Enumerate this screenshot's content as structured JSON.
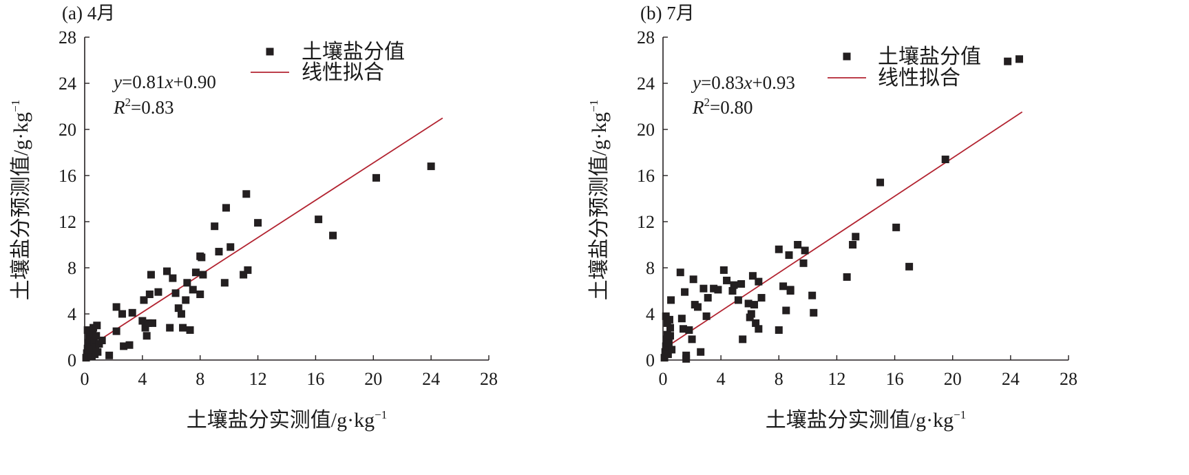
{
  "chart_data": [
    {
      "type": "scatter",
      "panel_label": "(a) 4月",
      "xlabel": "土壤盐分实测值/g·kg",
      "ylabel": "土壤盐分预测值/g·kg",
      "unit_exponent": "−1",
      "xlim": [
        0,
        28
      ],
      "ylim": [
        0,
        28
      ],
      "xticks": [
        0,
        4,
        8,
        12,
        16,
        20,
        24,
        28
      ],
      "yticks": [
        0,
        4,
        8,
        12,
        16,
        20,
        24,
        28
      ],
      "legend": {
        "points": "土壤盐分值",
        "fit": "线性拟合",
        "position": "top-center"
      },
      "equation": {
        "y": "y",
        "mid": "=0.81",
        "x": "x",
        "rest": "+0.90"
      },
      "r2": {
        "r": "R",
        "sup": "2",
        "rest": "=0.83"
      },
      "fit": {
        "slope": 0.81,
        "intercept": 0.9,
        "x_range": [
          0,
          24.8
        ]
      },
      "colors": {
        "points": "#231f20",
        "fit": "#b22330"
      },
      "points": [
        [
          0.1,
          0.2
        ],
        [
          0.15,
          0.6
        ],
        [
          0.2,
          1.0
        ],
        [
          0.25,
          1.5
        ],
        [
          0.3,
          2.0
        ],
        [
          0.2,
          2.6
        ],
        [
          0.35,
          0.4
        ],
        [
          0.4,
          1.2
        ],
        [
          0.45,
          1.8
        ],
        [
          0.5,
          0.3
        ],
        [
          0.55,
          2.3
        ],
        [
          0.6,
          0.9
        ],
        [
          0.65,
          1.6
        ],
        [
          0.7,
          0.5
        ],
        [
          0.75,
          1.1
        ],
        [
          0.8,
          2.1
        ],
        [
          0.85,
          3.0
        ],
        [
          0.9,
          0.7
        ],
        [
          1.0,
          1.4
        ],
        [
          0.6,
          2.8
        ],
        [
          0.3,
          0.9
        ],
        [
          1.2,
          1.7
        ],
        [
          1.7,
          0.4
        ],
        [
          2.2,
          2.5
        ],
        [
          2.2,
          4.6
        ],
        [
          2.6,
          4.0
        ],
        [
          2.7,
          1.2
        ],
        [
          3.1,
          1.3
        ],
        [
          3.3,
          4.1
        ],
        [
          4.0,
          3.4
        ],
        [
          4.1,
          5.2
        ],
        [
          4.2,
          2.8
        ],
        [
          4.3,
          2.1
        ],
        [
          4.4,
          3.2
        ],
        [
          4.5,
          5.7
        ],
        [
          4.6,
          7.4
        ],
        [
          4.7,
          3.2
        ],
        [
          5.1,
          5.9
        ],
        [
          5.7,
          7.7
        ],
        [
          5.9,
          2.8
        ],
        [
          6.1,
          7.1
        ],
        [
          6.3,
          5.8
        ],
        [
          6.5,
          4.5
        ],
        [
          6.7,
          4.0
        ],
        [
          6.8,
          2.8
        ],
        [
          7.0,
          5.2
        ],
        [
          7.1,
          6.7
        ],
        [
          7.3,
          2.6
        ],
        [
          7.5,
          6.1
        ],
        [
          7.7,
          7.6
        ],
        [
          8.0,
          9.0
        ],
        [
          8.0,
          5.7
        ],
        [
          8.2,
          7.4
        ],
        [
          8.1,
          8.9
        ],
        [
          9.0,
          11.6
        ],
        [
          9.3,
          9.4
        ],
        [
          9.7,
          6.7
        ],
        [
          9.8,
          13.2
        ],
        [
          10.1,
          9.8
        ],
        [
          11.0,
          7.4
        ],
        [
          11.2,
          14.4
        ],
        [
          11.3,
          7.8
        ],
        [
          12.0,
          11.9
        ],
        [
          16.2,
          12.2
        ],
        [
          17.2,
          10.8
        ],
        [
          20.2,
          15.8
        ],
        [
          24.0,
          16.8
        ]
      ]
    },
    {
      "type": "scatter",
      "panel_label": "(b) 7月",
      "xlabel": "土壤盐分实测值/g·kg",
      "ylabel": "土壤盐分预测值/g·kg",
      "unit_exponent": "−1",
      "xlim": [
        0,
        28
      ],
      "ylim": [
        0,
        28
      ],
      "xticks": [
        0,
        4,
        8,
        12,
        16,
        20,
        24,
        28
      ],
      "yticks": [
        0,
        4,
        8,
        12,
        16,
        20,
        24,
        28
      ],
      "legend": {
        "points": "土壤盐分值",
        "fit": "线性拟合",
        "position": "top-center"
      },
      "equation": {
        "y": "y",
        "mid": "=0.83",
        "x": "x",
        "rest": "+0.93"
      },
      "r2": {
        "r": "R",
        "sup": "2",
        "rest": "=0.80"
      },
      "fit": {
        "slope": 0.83,
        "intercept": 0.93,
        "x_range": [
          0,
          24.8
        ]
      },
      "colors": {
        "points": "#231f20",
        "fit": "#b22330"
      },
      "points": [
        [
          0.1,
          0.2
        ],
        [
          0.15,
          0.7
        ],
        [
          0.2,
          1.2
        ],
        [
          0.25,
          1.8
        ],
        [
          0.3,
          2.2
        ],
        [
          0.2,
          3.8
        ],
        [
          0.35,
          0.5
        ],
        [
          0.4,
          1.5
        ],
        [
          0.45,
          3.5
        ],
        [
          0.5,
          2.8
        ],
        [
          0.55,
          5.2
        ],
        [
          0.6,
          0.9
        ],
        [
          0.3,
          3.2
        ],
        [
          0.5,
          2.1
        ],
        [
          1.2,
          7.6
        ],
        [
          1.3,
          3.6
        ],
        [
          1.4,
          2.7
        ],
        [
          1.5,
          5.9
        ],
        [
          1.6,
          0.4
        ],
        [
          1.6,
          0.1
        ],
        [
          1.8,
          2.6
        ],
        [
          2.0,
          1.8
        ],
        [
          2.1,
          7.0
        ],
        [
          2.2,
          4.8
        ],
        [
          2.4,
          4.6
        ],
        [
          2.6,
          0.7
        ],
        [
          2.8,
          6.2
        ],
        [
          3.0,
          3.8
        ],
        [
          3.1,
          5.4
        ],
        [
          3.5,
          6.2
        ],
        [
          3.8,
          6.1
        ],
        [
          4.2,
          7.8
        ],
        [
          4.4,
          6.9
        ],
        [
          4.8,
          6.0
        ],
        [
          4.9,
          6.5
        ],
        [
          5.2,
          5.2
        ],
        [
          5.4,
          6.6
        ],
        [
          5.5,
          1.8
        ],
        [
          5.9,
          4.9
        ],
        [
          6.0,
          3.7
        ],
        [
          6.1,
          4.0
        ],
        [
          6.2,
          7.3
        ],
        [
          6.3,
          4.8
        ],
        [
          6.4,
          3.2
        ],
        [
          6.6,
          6.8
        ],
        [
          6.6,
          2.7
        ],
        [
          6.8,
          5.4
        ],
        [
          8.0,
          9.6
        ],
        [
          8.0,
          2.6
        ],
        [
          8.3,
          6.4
        ],
        [
          8.5,
          4.3
        ],
        [
          8.7,
          9.1
        ],
        [
          8.8,
          6.1
        ],
        [
          8.8,
          6.0
        ],
        [
          9.3,
          10.0
        ],
        [
          9.7,
          8.4
        ],
        [
          9.8,
          9.5
        ],
        [
          10.3,
          5.6
        ],
        [
          10.4,
          4.1
        ],
        [
          12.7,
          7.2
        ],
        [
          13.1,
          10.0
        ],
        [
          13.3,
          10.7
        ],
        [
          15.0,
          15.4
        ],
        [
          16.1,
          11.5
        ],
        [
          17.0,
          8.1
        ],
        [
          19.5,
          17.4
        ],
        [
          23.8,
          25.9
        ],
        [
          24.6,
          26.1
        ]
      ]
    }
  ]
}
